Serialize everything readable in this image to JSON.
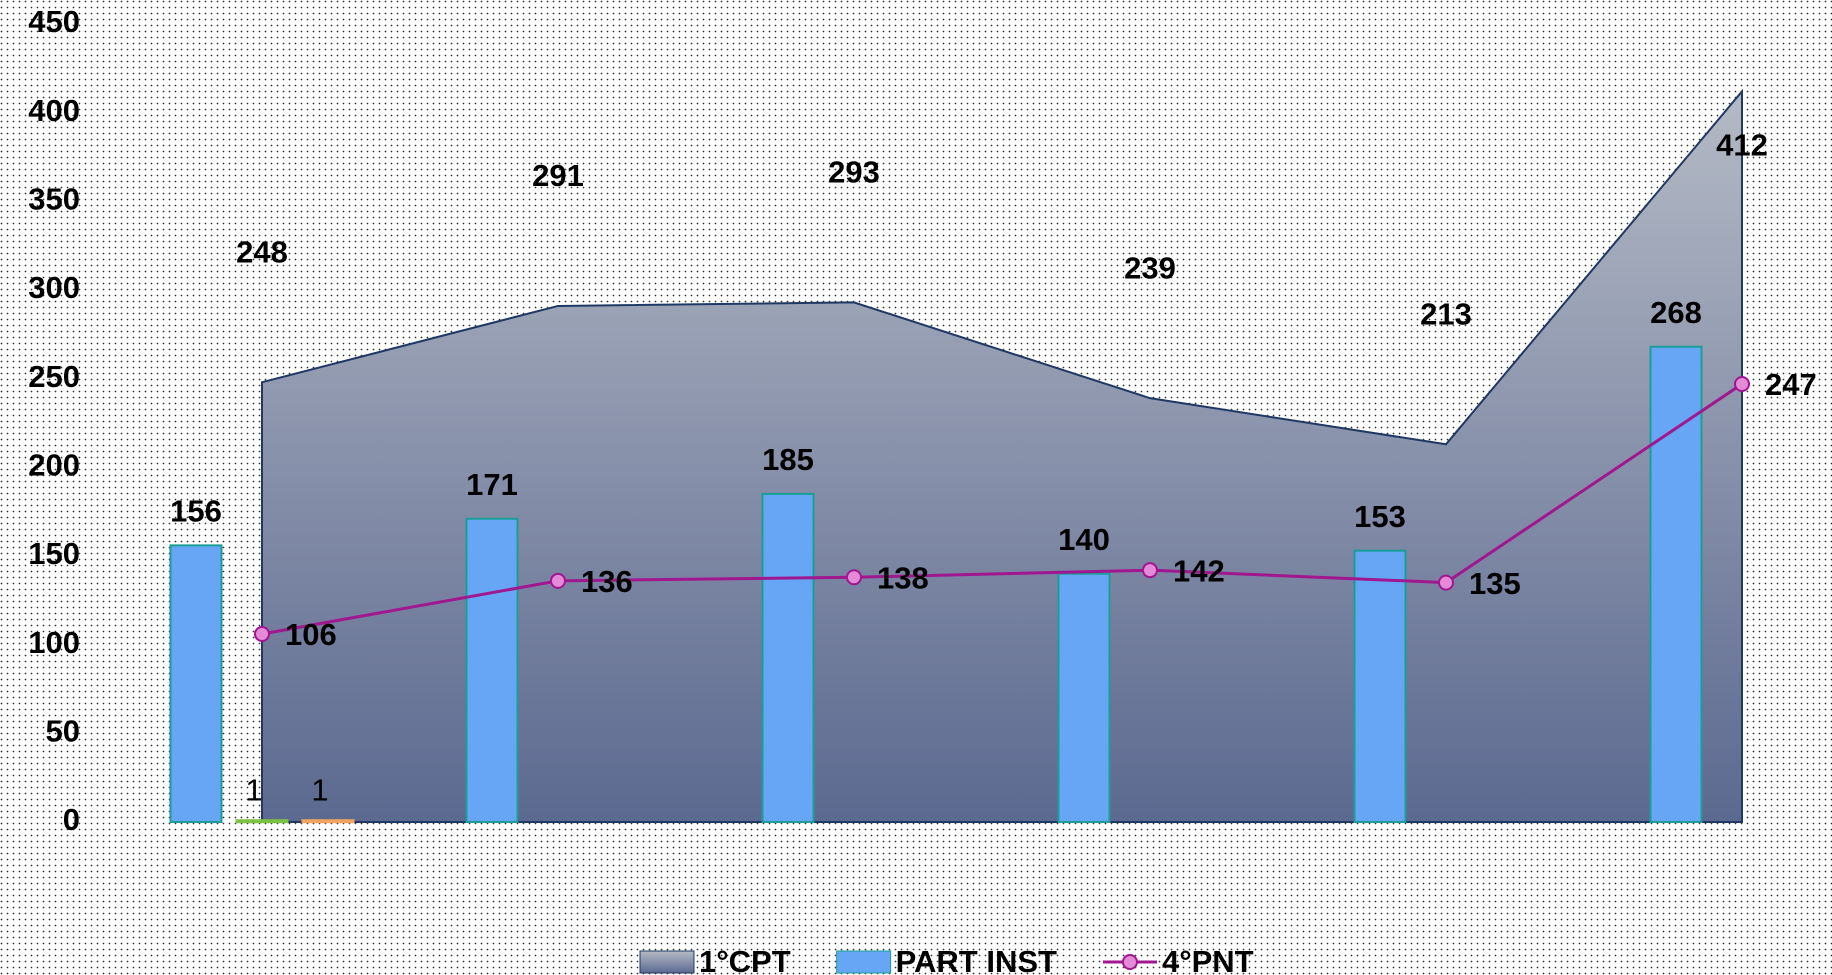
{
  "chart_data": {
    "type": "combo",
    "categories": [
      null,
      null,
      null,
      null,
      null,
      null
    ],
    "ylim": [
      0,
      450
    ],
    "yticks": [
      0,
      50,
      100,
      150,
      200,
      250,
      300,
      350,
      400,
      450
    ],
    "legend": "bottom",
    "series": [
      {
        "name": "1°CPT",
        "type": "area",
        "color": "#6f7b9a",
        "values": [
          248,
          291,
          293,
          239,
          213,
          412
        ]
      },
      {
        "name": "PART INST",
        "type": "bar",
        "color": "#66a6f5",
        "values": [
          156,
          171,
          185,
          140,
          153,
          268
        ]
      },
      {
        "type": "bar",
        "color": "#7cc242",
        "values": [
          1,
          null,
          null,
          null,
          null,
          null
        ]
      },
      {
        "type": "bar",
        "color": "#f4a460",
        "values": [
          1,
          null,
          null,
          null,
          null,
          null
        ]
      },
      {
        "name": "4°PNT",
        "type": "line",
        "color": "#a0178f",
        "values": [
          106,
          136,
          138,
          142,
          135,
          247
        ]
      }
    ]
  }
}
